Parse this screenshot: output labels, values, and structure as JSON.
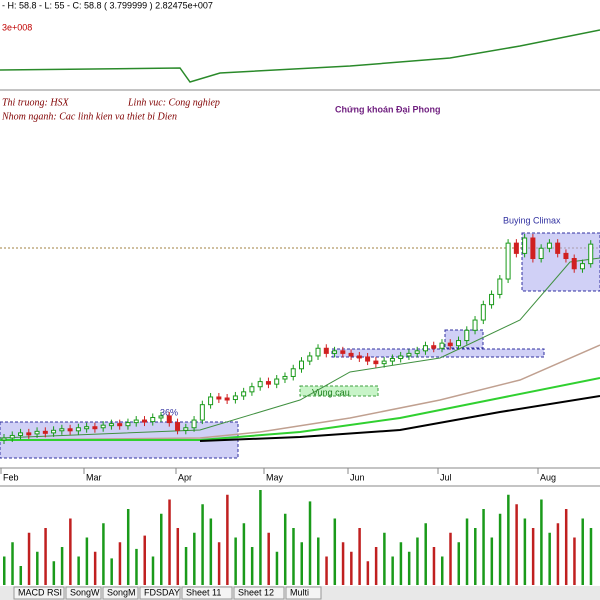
{
  "header": {
    "quote": "- H: 58.8 - L: 55 - C: 58.8 ( 3.799999 ) 2.82475e+007",
    "volume_note": "3e+008"
  },
  "info": {
    "market": "Thi truong: HSX",
    "sector": "Linh vuc: Cong nghiep",
    "group": "Nhom nganh: Cac linh kien va thiet bi Dien",
    "title": "Chứng khoán Đại Phong"
  },
  "annotations": {
    "climax": "Buying Climax",
    "gain": "36%",
    "demand": "Vung cau"
  },
  "chart_data": {
    "type": "candlestick",
    "months": [
      "Feb",
      "Mar",
      "Apr",
      "May",
      "Jun",
      "Jul",
      "Aug"
    ],
    "values": [
      21,
      21.5,
      22,
      21.8,
      22.3,
      22,
      22.5,
      22.8,
      22.4,
      23,
      23.2,
      23,
      23.5,
      23.8,
      23.4,
      24,
      24.5,
      24.2,
      25,
      25.3,
      24,
      22.5,
      23,
      24.5,
      27.5,
      29,
      28.8,
      28.5,
      29.2,
      30,
      31,
      32,
      31.5,
      32.5,
      33,
      34.5,
      36,
      37,
      38.5,
      37.5,
      38,
      37.5,
      37,
      36.8,
      36,
      35.5,
      36,
      36.5,
      37,
      37.5,
      38,
      39,
      38.5,
      39.5,
      39,
      40,
      42,
      44,
      47,
      49,
      52,
      59,
      57,
      60,
      56,
      58,
      59,
      57,
      56,
      54,
      55,
      58.8
    ],
    "volume": [
      30,
      45,
      20,
      55,
      35,
      60,
      25,
      40,
      70,
      30,
      50,
      35,
      65,
      28,
      45,
      80,
      38,
      52,
      30,
      75,
      90,
      60,
      40,
      55,
      85,
      70,
      45,
      95,
      50,
      65,
      40,
      100,
      55,
      35,
      75,
      60,
      45,
      88,
      50,
      30,
      70,
      45,
      35,
      60,
      25,
      40,
      55,
      30,
      45,
      35,
      50,
      65,
      40,
      30,
      55,
      45,
      70,
      60,
      80,
      50,
      75,
      95,
      85,
      70,
      60,
      90,
      55,
      65,
      80,
      50,
      70,
      60
    ]
  },
  "tabs": [
    "MACD RSI",
    "SongW",
    "SongM",
    "FDSDAY",
    "Sheet 11",
    "Sheet 12",
    "Multi"
  ]
}
